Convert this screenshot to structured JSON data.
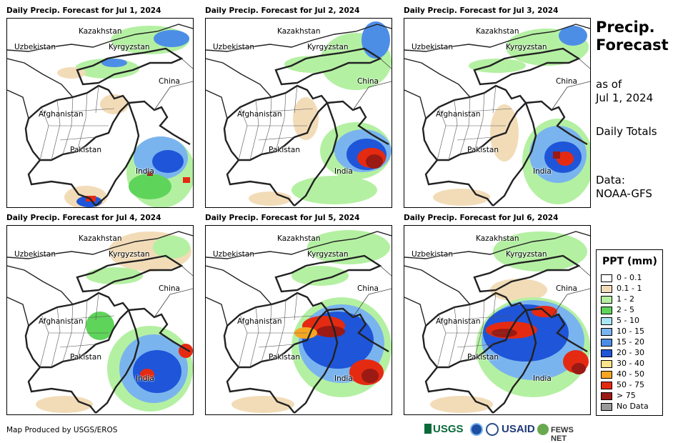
{
  "panels": [
    {
      "title": "Daily Precip. Forecast for Jul 1, 2024"
    },
    {
      "title": "Daily Precip. Forecast for Jul 2, 2024"
    },
    {
      "title": "Daily Precip. Forecast for Jul 3, 2024"
    },
    {
      "title": "Daily Precip. Forecast for Jul 4, 2024"
    },
    {
      "title": "Daily Precip. Forecast for Jul 5, 2024"
    },
    {
      "title": "Daily Precip. Forecast for Jul 6, 2024"
    }
  ],
  "map_labels": {
    "kazakhstan": "Kazakhstan",
    "uzbekistan": "Uzbekistan",
    "kyrgyzstan": "Kyrgyzstan",
    "china": "China",
    "afghanistan": "Afghanistan",
    "pakistan": "Pakistan",
    "india": "India"
  },
  "sidebar": {
    "title_line1": "Precip.",
    "title_line2": "Forecast",
    "asof_line1": "as of",
    "asof_line2": "Jul 1, 2024",
    "totals": "Daily Totals",
    "data_line1": "Data:",
    "data_line2": "NOAA-GFS"
  },
  "legend": {
    "title": "PPT (mm)",
    "items": [
      {
        "label": "0 - 0.1",
        "color": "#ffffff"
      },
      {
        "label": "0.1 - 1",
        "color": "#f2dcb8"
      },
      {
        "label": "1 - 2",
        "color": "#b4f0a2"
      },
      {
        "label": "2 - 5",
        "color": "#5fd45a"
      },
      {
        "label": "5 - 10",
        "color": "#a8e6f6"
      },
      {
        "label": "10 - 15",
        "color": "#7ab4ee"
      },
      {
        "label": "15 - 20",
        "color": "#4c8ee6"
      },
      {
        "label": "20 - 30",
        "color": "#1f55d8"
      },
      {
        "label": "30 - 40",
        "color": "#fbe38a"
      },
      {
        "label": "40 - 50",
        "color": "#f5a623"
      },
      {
        "label": "50 - 75",
        "color": "#e52a12"
      },
      {
        "label": "> 75",
        "color": "#9b1a14"
      },
      {
        "label": "No Data",
        "color": "#9a9a9a"
      }
    ]
  },
  "footer": "Map Produced by USGS/EROS",
  "logos": {
    "usgs": "USGS",
    "usaid": "USAID",
    "fewsnet": "FEWS NET"
  }
}
